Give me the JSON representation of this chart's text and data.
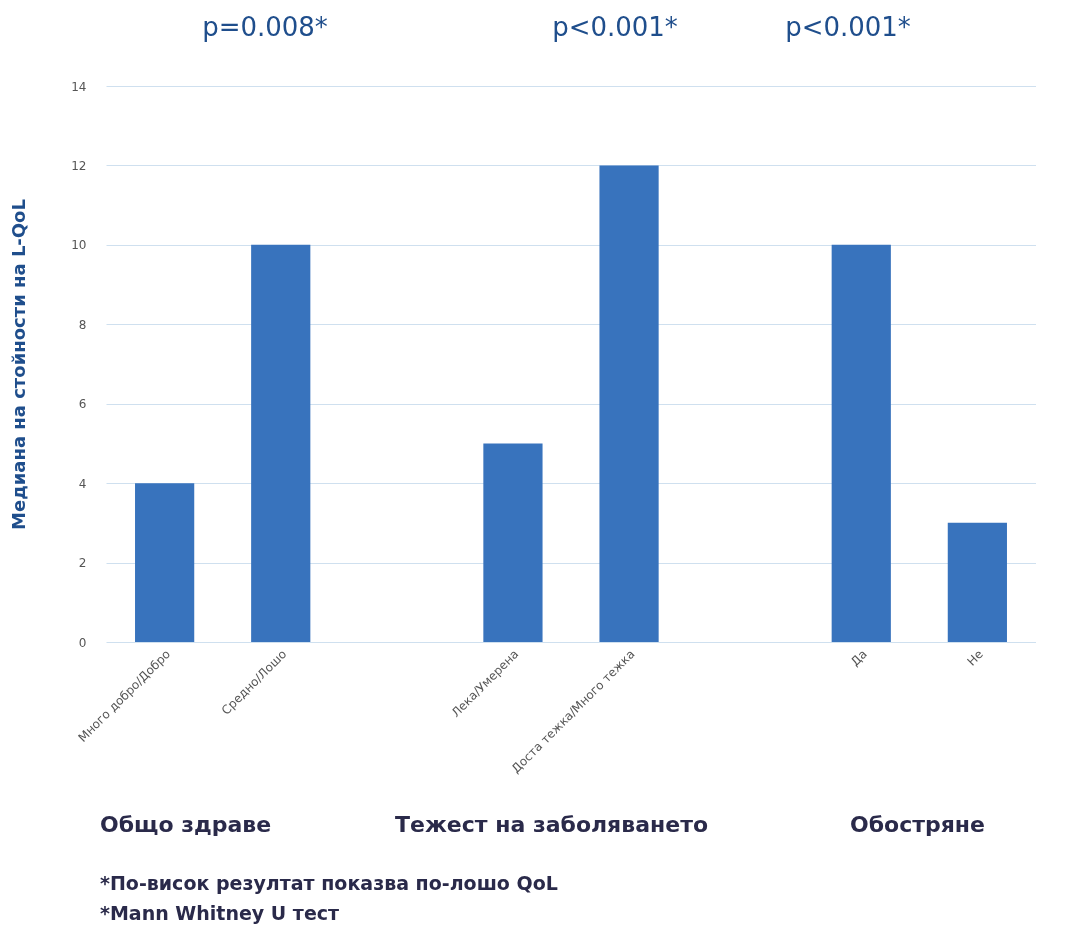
{
  "chart_data": {
    "type": "bar",
    "ylabel": "Медиана на стойности на L-QoL",
    "categories": [
      "Много добро/Добро",
      "Средно/Лошо",
      null,
      "Лека/Умерена",
      "Доста тежка/Много тежка",
      null,
      "Да",
      "Не"
    ],
    "values": [
      4,
      10,
      null,
      5,
      12,
      null,
      10,
      3
    ],
    "color": "#3873bd",
    "ylim": [
      0,
      14
    ],
    "yticks": [
      0,
      2,
      4,
      6,
      8,
      10,
      12,
      14
    ],
    "grid": "y",
    "annotations": [
      "p=0.008*",
      "p<0.001*",
      "p<0.001*",
      "Общо здраве",
      "Тежест на заболяването",
      "Обостряне",
      "*По-висок резултат показва по-лошо QoL",
      "*Mann Whitney U тест"
    ]
  }
}
